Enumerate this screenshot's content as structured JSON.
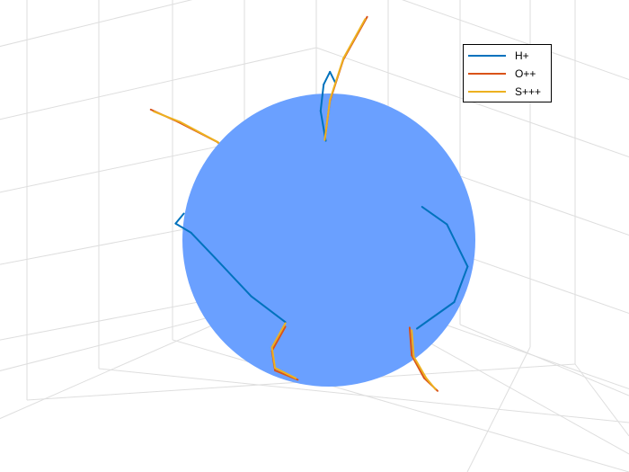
{
  "chart_data": {
    "type": "line",
    "projection": "3d-orthographic",
    "title": "",
    "xlabel": "",
    "ylabel": "",
    "zlabel": "",
    "grid": true,
    "legend": {
      "placement": "top-right",
      "entries": [
        "H+",
        "O++",
        "S+++"
      ]
    },
    "colors": {
      "H+": "#0072bd",
      "O++": "#d95319",
      "S+++": "#edb120",
      "sphere": "#6aa0ff",
      "grid": "#dedede"
    },
    "sphere": {
      "center": [
        0,
        0,
        0
      ],
      "radius": 1
    },
    "series": [
      {
        "name": "H+",
        "trajectories": [
          [
            [
              0.1,
              0.52,
              0.9
            ],
            [
              0.0,
              0.75,
              0.75
            ],
            [
              -0.17,
              0.93,
              0.45
            ],
            [
              -0.35,
              0.98,
              0.2
            ],
            [
              -0.58,
              0.9,
              0.0
            ],
            [
              -0.75,
              0.65,
              -0.25
            ]
          ],
          [
            [
              0.55,
              -0.3,
              0.8
            ],
            [
              0.68,
              -0.53,
              0.55
            ],
            [
              0.72,
              -0.62,
              0.25
            ],
            [
              0.66,
              -0.48,
              -0.05
            ],
            [
              0.55,
              -0.35,
              -0.18
            ]
          ],
          [
            [
              0.82,
              0.85,
              -0.1
            ],
            [
              0.9,
              0.98,
              -0.25
            ],
            [
              0.95,
              1.0,
              -0.43
            ],
            [
              0.93,
              0.92,
              -0.57
            ],
            [
              0.88,
              0.82,
              -0.55
            ]
          ],
          [
            [
              -0.5,
              -0.1,
              -0.5
            ],
            [
              -0.55,
              0.05,
              -0.58
            ],
            [
              -0.62,
              0.25,
              -0.55
            ],
            [
              -0.7,
              0.4,
              -0.45
            ],
            [
              -0.68,
              0.45,
              -0.35
            ]
          ],
          [
            [
              0.0,
              -0.8,
              -0.7
            ],
            [
              -0.15,
              -0.9,
              -0.85
            ],
            [
              -0.35,
              -0.92,
              -1.1
            ],
            [
              -0.55,
              -0.8,
              -1.3
            ],
            [
              -0.75,
              -0.55,
              -1.3
            ],
            [
              -0.85,
              -0.28,
              -1.15
            ],
            [
              -0.84,
              -0.2,
              -0.95
            ]
          ]
        ]
      },
      {
        "name": "O++",
        "trajectories": [
          [
            [
              0.08,
              0.5,
              0.92
            ],
            [
              0.1,
              0.65,
              1.18
            ],
            [
              0.22,
              0.74,
              1.42
            ],
            [
              0.4,
              0.7,
              1.55
            ]
          ],
          [
            [
              0.5,
              -0.28,
              0.78
            ],
            [
              0.45,
              -0.35,
              0.95
            ],
            [
              0.5,
              -0.42,
              1.12
            ],
            [
              0.6,
              -0.45,
              1.25
            ]
          ],
          [
            [
              0.8,
              0.84,
              -0.12
            ],
            [
              0.98,
              0.97,
              -0.3
            ],
            [
              1.2,
              1.06,
              -0.5
            ],
            [
              1.42,
              1.05,
              -0.75
            ]
          ],
          [
            [
              -0.66,
              0.46,
              -0.38
            ],
            [
              -0.82,
              0.42,
              -0.62
            ],
            [
              -0.96,
              0.2,
              -0.72
            ],
            [
              -1.0,
              -0.07,
              -0.75
            ]
          ],
          [
            [
              -0.85,
              -0.18,
              -0.92
            ],
            [
              -1.0,
              0.08,
              -1.15
            ],
            [
              -1.18,
              0.28,
              -1.3
            ],
            [
              -1.34,
              0.38,
              -1.42
            ]
          ]
        ]
      },
      {
        "name": "S+++",
        "trajectories": [
          [
            [
              0.09,
              0.51,
              0.9
            ],
            [
              0.11,
              0.66,
              1.16
            ],
            [
              0.22,
              0.74,
              1.4
            ],
            [
              0.38,
              0.7,
              1.53
            ]
          ],
          [
            [
              0.51,
              -0.29,
              0.8
            ],
            [
              0.46,
              -0.36,
              0.96
            ],
            [
              0.51,
              -0.43,
              1.12
            ],
            [
              0.58,
              -0.45,
              1.23
            ]
          ],
          [
            [
              0.81,
              0.85,
              -0.11
            ],
            [
              0.99,
              0.98,
              -0.3
            ],
            [
              1.21,
              1.07,
              -0.5
            ],
            [
              1.4,
              1.05,
              -0.74
            ]
          ],
          [
            [
              -0.65,
              0.46,
              -0.37
            ],
            [
              -0.81,
              0.42,
              -0.61
            ],
            [
              -0.95,
              0.21,
              -0.71
            ],
            [
              -0.99,
              -0.06,
              -0.74
            ]
          ],
          [
            [
              -0.84,
              -0.18,
              -0.91
            ],
            [
              -1.0,
              0.07,
              -1.15
            ],
            [
              -1.17,
              0.27,
              -1.3
            ],
            [
              -1.32,
              0.37,
              -1.4
            ]
          ]
        ]
      }
    ]
  }
}
